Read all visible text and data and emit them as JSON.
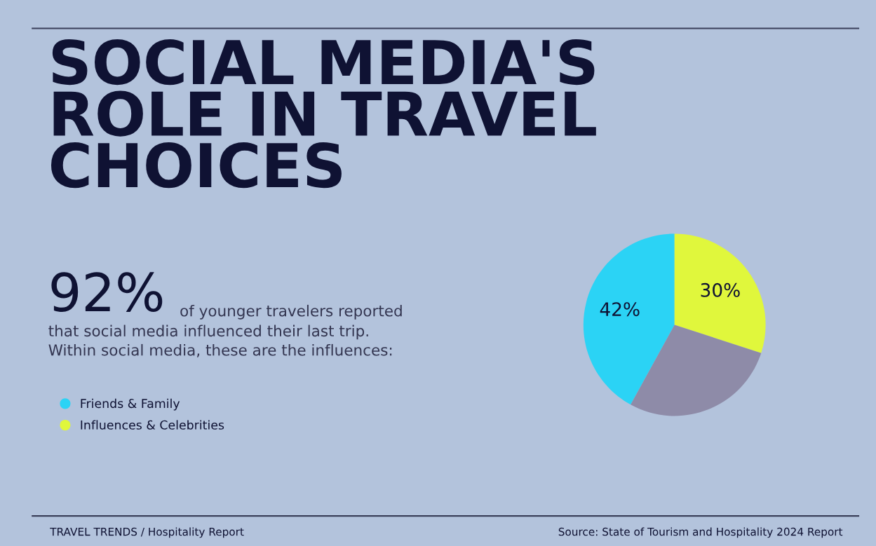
{
  "chart_data": {
    "type": "pie",
    "title": "SOCIAL MEDIA'S\nROLE IN TRAVEL\nCHOICES",
    "categories": [
      "Friends & Family",
      "Influences & Celebrities",
      null
    ],
    "values": [
      42,
      30,
      28
    ],
    "colors": [
      "#2bd3f5",
      "#e0f73c",
      "#8e8ba8"
    ],
    "value_labels": [
      "42%",
      "30%",
      null
    ],
    "legend": "left",
    "annotations": [
      "92%",
      "of younger travelers reported",
      "that social media influenced their last trip.\nWithin social media, these are the influences:",
      "TRAVEL TRENDS / Hospitality Report",
      "Source: State of Tourism and Hospitality 2024 Report"
    ]
  }
}
